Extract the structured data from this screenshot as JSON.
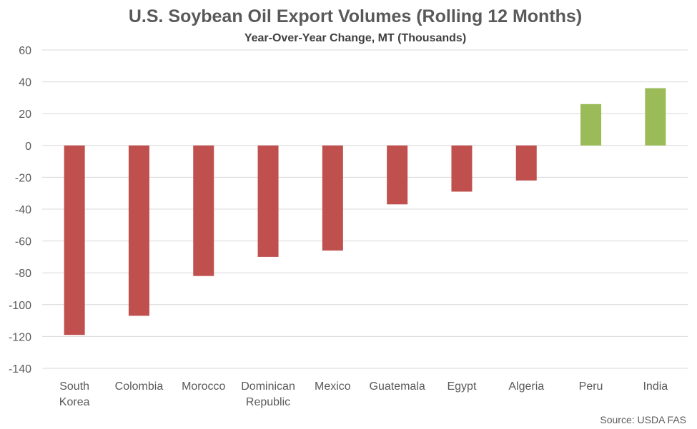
{
  "chart_data": {
    "type": "bar",
    "title": "U.S. Soybean Oil Export Volumes (Rolling 12 Months)",
    "subtitle": "Year-Over-Year Change, MT (Thousands)",
    "categories": [
      [
        "South",
        "Korea"
      ],
      [
        "Colombia"
      ],
      [
        "Morocco"
      ],
      [
        "Dominican",
        "Republic"
      ],
      [
        "Mexico"
      ],
      [
        "Guatemala"
      ],
      [
        "Egypt"
      ],
      [
        "Algeria"
      ],
      [
        "Peru"
      ],
      [
        "India"
      ]
    ],
    "values": [
      -119,
      -107,
      -82,
      -70,
      -66,
      -37,
      -29,
      -22,
      26,
      36
    ],
    "ylim": [
      -140,
      60
    ],
    "yticks": [
      60,
      40,
      20,
      0,
      -20,
      -40,
      -60,
      -80,
      -100,
      -120,
      -140
    ],
    "grid": true,
    "legend": "none",
    "colors": {
      "negative": "#c0504d",
      "positive": "#9bbb59"
    },
    "source": "Source: USDA FAS"
  }
}
